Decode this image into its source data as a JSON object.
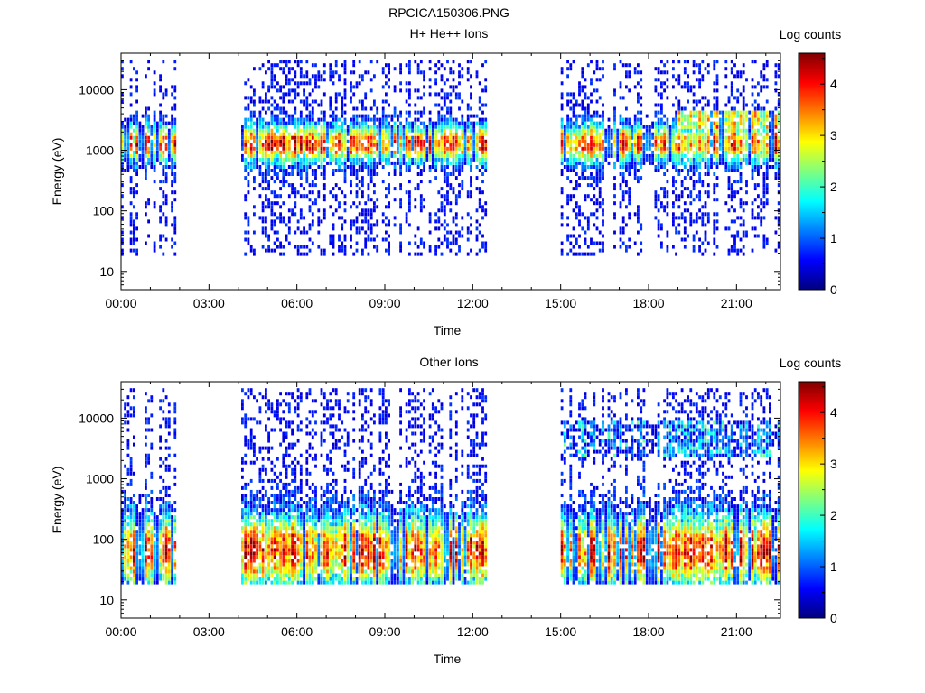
{
  "figure_title": "RPCICA150306.PNG",
  "colors": {
    "colormap": [
      "#00007f",
      "#0000ff",
      "#007fff",
      "#00ffff",
      "#7fff7f",
      "#ffff00",
      "#ff7f00",
      "#ff0000",
      "#7f0000"
    ]
  },
  "chart_data": [
    {
      "type": "heatmap",
      "title": "H+ He++ Ions",
      "xlabel": "Time",
      "ylabel": "Energy (eV)",
      "colorbar_label": "Log counts",
      "x_ticks": [
        "00:00",
        "03:00",
        "06:00",
        "09:00",
        "12:00",
        "15:00",
        "18:00",
        "21:00"
      ],
      "y_ticks": [
        "10",
        "100",
        "1000",
        "10000"
      ],
      "y_scale": "log",
      "ylim": [
        5,
        40000
      ],
      "xlim_hours": [
        0,
        22.5
      ],
      "colorbar_ticks": [
        "0",
        "1",
        "2",
        "3",
        "4"
      ],
      "colorbar_range": [
        0,
        4.6
      ],
      "data_intervals_hours": [
        [
          0.0,
          1.9
        ],
        [
          4.1,
          12.4
        ],
        [
          15.0,
          22.5
        ]
      ],
      "peak_energy_eV": 1200,
      "peak_log_counts": 4.2
    },
    {
      "type": "heatmap",
      "title": "Other Ions",
      "xlabel": "Time",
      "ylabel": "Energy (eV)",
      "colorbar_label": "Log counts",
      "x_ticks": [
        "00:00",
        "03:00",
        "06:00",
        "09:00",
        "12:00",
        "15:00",
        "18:00",
        "21:00"
      ],
      "y_ticks": [
        "10",
        "100",
        "1000",
        "10000"
      ],
      "y_scale": "log",
      "ylim": [
        5,
        40000
      ],
      "xlim_hours": [
        0,
        22.5
      ],
      "colorbar_ticks": [
        "0",
        "1",
        "2",
        "3",
        "4"
      ],
      "colorbar_range": [
        0,
        4.6
      ],
      "data_intervals_hours": [
        [
          0.0,
          1.9
        ],
        [
          4.1,
          12.4
        ],
        [
          15.0,
          22.5
        ]
      ],
      "peak_energy_eV": 60,
      "peak_log_counts": 4.4
    }
  ]
}
